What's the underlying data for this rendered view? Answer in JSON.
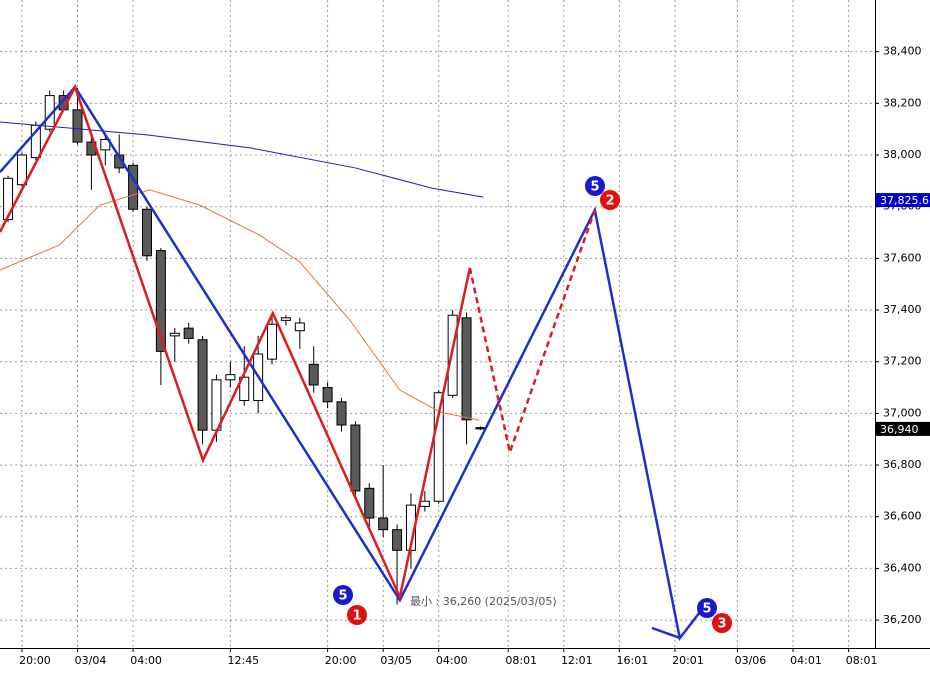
{
  "chart_data": {
    "type": "candlestick",
    "xlim": [
      -0.58,
      62.4
    ],
    "ylim": [
      36092,
      38600
    ],
    "grid": true,
    "up_color": "#ffffff",
    "down_color": "#5a5a5a",
    "xticks": [
      {
        "value": 1,
        "label": "20:00"
      },
      {
        "value": 5,
        "label": "03/04"
      },
      {
        "value": 9,
        "label": "04:00"
      },
      {
        "value": 16,
        "label": "12:45"
      },
      {
        "value": 23,
        "label": "20:00"
      },
      {
        "value": 27,
        "label": "03/05"
      },
      {
        "value": 31,
        "label": "04:00"
      },
      {
        "value": 36,
        "label": "08:01"
      },
      {
        "value": 40,
        "label": "12:01"
      },
      {
        "value": 44,
        "label": "16:01"
      },
      {
        "value": 48,
        "label": "20:01"
      },
      {
        "value": 52.5,
        "label": "03/06"
      },
      {
        "value": 56.5,
        "label": "04:01"
      },
      {
        "value": 60.5,
        "label": "08:01"
      }
    ],
    "yticks": [
      {
        "value": 36200,
        "label": "36,200"
      },
      {
        "value": 36400,
        "label": "36,400"
      },
      {
        "value": 36600,
        "label": "36,600"
      },
      {
        "value": 36800,
        "label": "36,800"
      },
      {
        "value": 37000,
        "label": "37,000"
      },
      {
        "value": 37200,
        "label": "37,200"
      },
      {
        "value": 37400,
        "label": "37,400"
      },
      {
        "value": 37600,
        "label": "37,600"
      },
      {
        "value": 37800,
        "label": "37,800"
      },
      {
        "value": 38000,
        "label": "38,000"
      },
      {
        "value": 38200,
        "label": "38,200"
      },
      {
        "value": 38400,
        "label": "38,400"
      }
    ],
    "price_labels": [
      {
        "value": 37825.6,
        "label": "37,825.6",
        "color": "#0000cc"
      },
      {
        "value": 36940,
        "label": "36,940",
        "color": "#000000"
      }
    ],
    "candles": {
      "x": [
        0,
        1,
        2,
        3,
        4,
        5,
        6,
        7,
        8,
        9,
        10,
        11,
        12,
        13,
        14,
        15,
        16,
        17,
        18,
        19,
        20,
        21,
        22,
        23,
        24,
        25,
        26,
        27,
        28,
        29,
        30,
        31,
        32,
        33,
        34
      ],
      "open": [
        37750,
        37885,
        37990,
        38100,
        38230,
        38175,
        38050,
        38020,
        38000,
        37960,
        37790,
        37630,
        37300,
        37330,
        37285,
        36935,
        37130,
        37050,
        37050,
        37210,
        37360,
        37320,
        37190,
        37100,
        37045,
        36955,
        36710,
        36595,
        36550,
        36470,
        36640,
        36660,
        37070,
        37370,
        36945
      ],
      "high": [
        37920,
        38010,
        38130,
        38250,
        38250,
        38260,
        38080,
        38080,
        38080,
        37970,
        37800,
        37640,
        37330,
        37350,
        37300,
        37150,
        37200,
        37260,
        37300,
        37380,
        37380,
        37370,
        37260,
        37120,
        37060,
        36970,
        36730,
        36800,
        36570,
        36690,
        36700,
        37090,
        37400,
        37390,
        36950
      ],
      "low": [
        37740,
        37880,
        37980,
        38090,
        38170,
        38040,
        37865,
        37960,
        37930,
        37780,
        37590,
        37110,
        37200,
        37270,
        36880,
        36890,
        37100,
        37030,
        37000,
        37190,
        37340,
        37250,
        37080,
        37020,
        36930,
        36680,
        36560,
        36520,
        36260,
        36400,
        36620,
        36650,
        37060,
        36880,
        36935
      ],
      "close": [
        37910,
        38000,
        38115,
        38230,
        38175,
        38050,
        38000,
        38060,
        37950,
        37790,
        37610,
        37240,
        37310,
        37290,
        36935,
        37130,
        37150,
        37140,
        37230,
        37345,
        37370,
        37350,
        37110,
        37045,
        36955,
        36700,
        36595,
        36550,
        36470,
        36645,
        36660,
        37080,
        37380,
        36975,
        36940
      ]
    },
    "lines": [
      {
        "color": "#1a1acc",
        "width": 1,
        "dash": false,
        "x": [
          -0.58,
          10,
          17.5,
          25,
          30.5,
          34.2
        ],
        "values": [
          38128,
          38078,
          38027,
          37950,
          37872,
          37837
        ]
      },
      {
        "color": "#e8743b",
        "width": 1,
        "dash": false,
        "x": [
          -0.58,
          3.7,
          6.6,
          10.2,
          13.8,
          18.1,
          21,
          24.6,
          28.2,
          31.1,
          33.9
        ],
        "values": [
          37555,
          37652,
          37806,
          37865,
          37806,
          37690,
          37586,
          37361,
          37090,
          37005,
          36974
        ]
      },
      {
        "color": "#1f2fcc",
        "width": 2.5,
        "dash": false,
        "x": [
          -0.58,
          4.82,
          28.2,
          42.23,
          48.35,
          49.78
        ],
        "values": [
          37934,
          38263,
          36277,
          37787,
          36130,
          36230
        ]
      },
      {
        "color": "#dd1c1c",
        "width": 2.5,
        "dash": false,
        "x": [
          -0.58,
          4.82,
          14.03,
          19.06,
          28.2,
          33.24
        ],
        "values": [
          37702,
          38263,
          36819,
          37388,
          36289,
          37563
        ]
      },
      {
        "color": "#dd1c1c",
        "width": 2.5,
        "dash": true,
        "x": [
          33.24,
          36.12,
          42.23
        ],
        "values": [
          37563,
          36850,
          37787
        ]
      }
    ],
    "annotation": "最小 : 36,260 (2025/03/05)",
    "badges": [
      "5",
      "1",
      "5",
      "2",
      "5",
      "3"
    ]
  }
}
